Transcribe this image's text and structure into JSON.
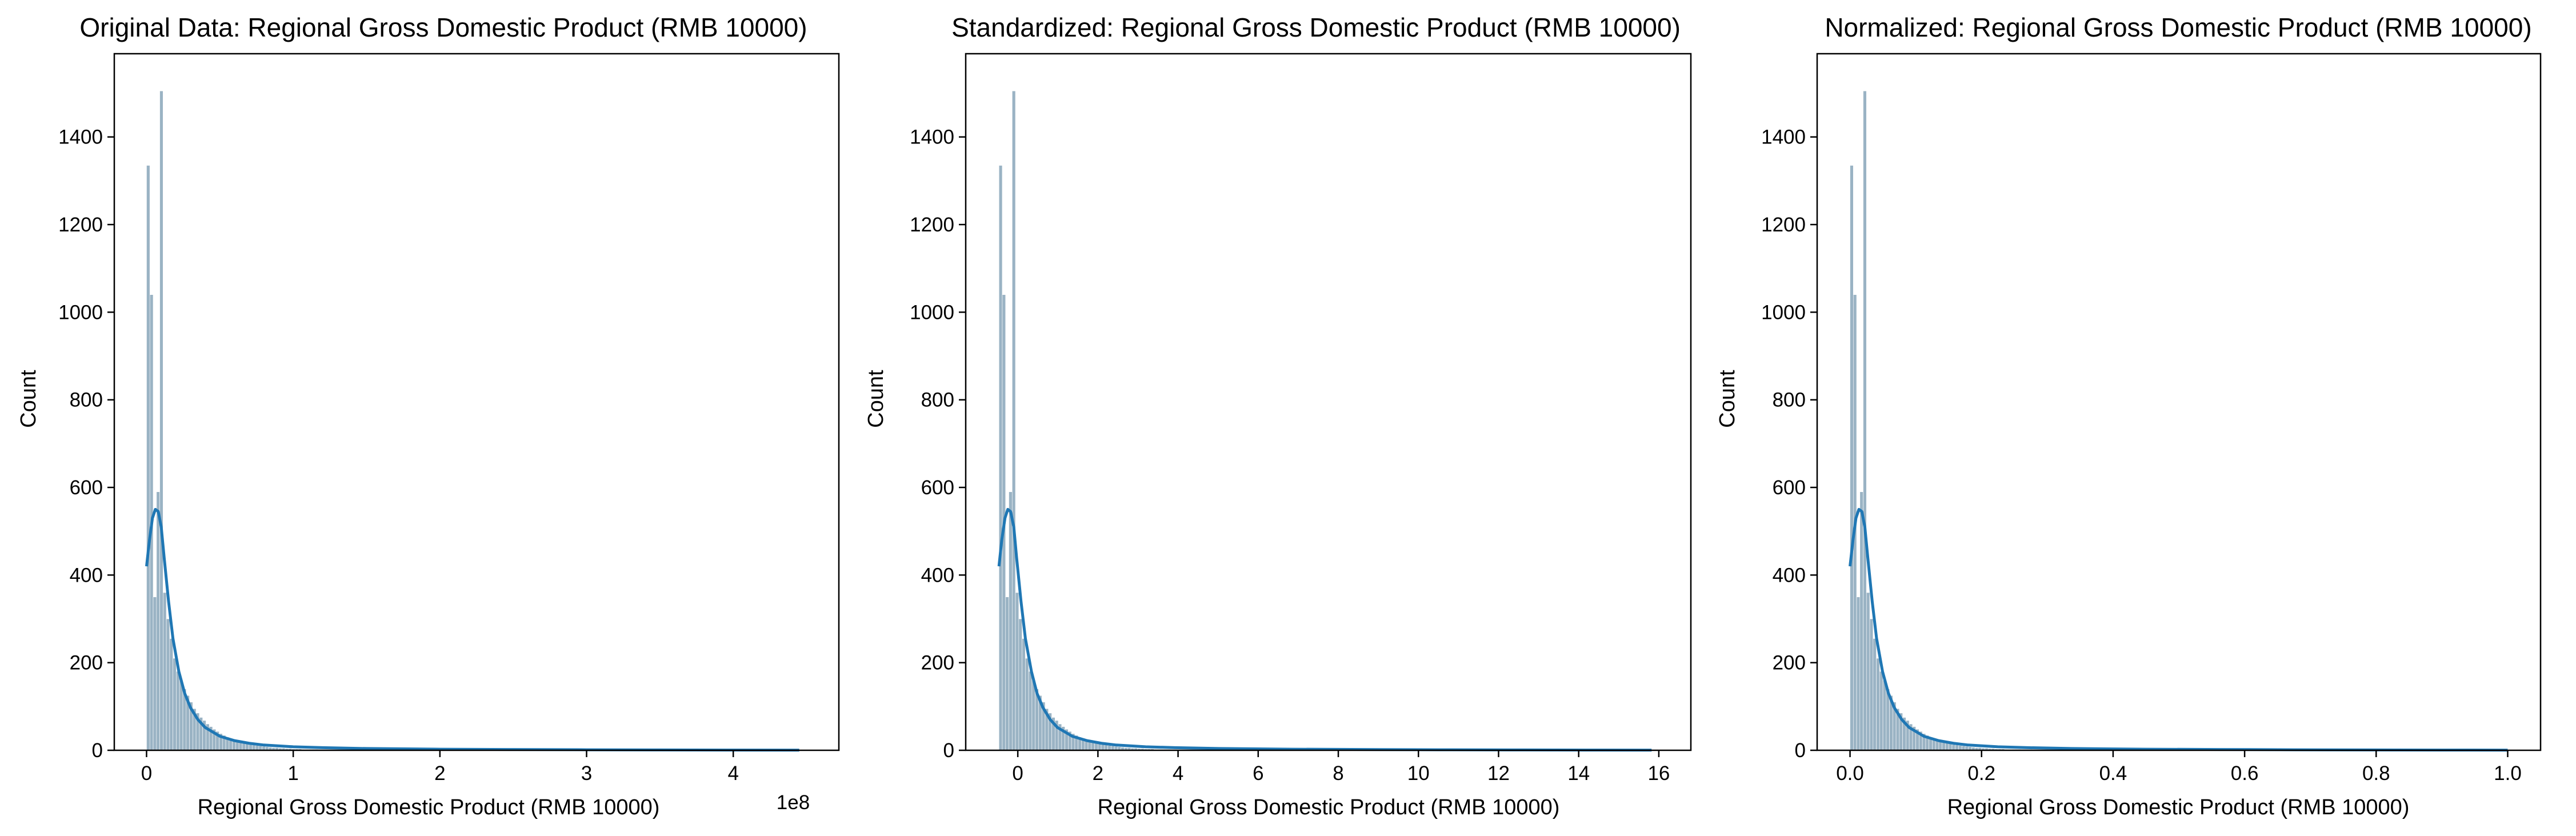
{
  "chart_data": [
    {
      "type": "bar",
      "title": "Original Data: Regional Gross Domestic Product (RMB 10000)",
      "xlabel": "Regional Gross Domestic Product (RMB 10000)",
      "ylabel": "Count",
      "x_offset_label": "1e8",
      "xlim": [
        -0.22,
        4.72
      ],
      "ylim": [
        0,
        1590
      ],
      "xticks": [
        0,
        1,
        2,
        3,
        4
      ],
      "xtick_labels": [
        "0",
        "1",
        "2",
        "3",
        "4"
      ],
      "yticks": [
        0,
        200,
        400,
        600,
        800,
        1000,
        1200,
        1400
      ],
      "ytick_labels": [
        "0",
        "200",
        "400",
        "600",
        "800",
        "1000",
        "1200",
        "1400"
      ],
      "bin_start": 0,
      "bin_width": 0.0225,
      "bin_counts": [
        1335,
        1040,
        350,
        590,
        1505,
        360,
        300,
        255,
        210,
        180,
        160,
        140,
        125,
        110,
        95,
        85,
        75,
        68,
        60,
        54,
        48,
        43,
        38,
        34,
        30,
        27,
        24,
        21,
        19,
        17,
        15,
        13,
        12,
        11,
        10,
        9,
        8,
        7,
        6,
        6,
        5,
        5,
        4,
        4,
        3,
        3,
        3,
        2,
        2,
        2,
        2,
        2,
        1,
        1,
        1
      ],
      "kde": {
        "x": [
          0,
          0.02,
          0.04,
          0.06,
          0.08,
          0.1,
          0.12,
          0.15,
          0.18,
          0.22,
          0.26,
          0.3,
          0.35,
          0.4,
          0.5,
          0.6,
          0.7,
          0.8,
          1.0,
          1.2,
          1.5,
          2.0,
          2.5,
          3.0,
          3.5,
          4.0,
          4.45
        ],
        "y": [
          420,
          480,
          530,
          550,
          545,
          510,
          440,
          340,
          255,
          180,
          130,
          97,
          70,
          52,
          32,
          22,
          16,
          12,
          8,
          6,
          4,
          2.5,
          1.8,
          1.2,
          0.8,
          0.5,
          0.3
        ]
      },
      "bar_color": "#9ab3c4",
      "line_color": "#1f77b4"
    },
    {
      "type": "bar",
      "title": "Standardized: Regional Gross Domestic Product (RMB 10000)",
      "xlabel": "Regional Gross Domestic Product (RMB 10000)",
      "ylabel": "Count",
      "xlim": [
        -1.3,
        16.8
      ],
      "ylim": [
        0,
        1590
      ],
      "xticks": [
        0,
        2,
        4,
        6,
        8,
        10,
        12,
        14,
        16
      ],
      "xtick_labels": [
        "0",
        "2",
        "4",
        "6",
        "8",
        "10",
        "12",
        "14",
        "16"
      ],
      "yticks": [
        0,
        200,
        400,
        600,
        800,
        1000,
        1200,
        1400
      ],
      "ytick_labels": [
        "0",
        "200",
        "400",
        "600",
        "800",
        "1000",
        "1200",
        "1400"
      ],
      "bin_start": -0.47,
      "bin_width": 0.0823,
      "bin_counts": [
        1335,
        1040,
        350,
        590,
        1505,
        360,
        300,
        255,
        210,
        180,
        160,
        140,
        125,
        110,
        95,
        85,
        75,
        68,
        60,
        54,
        48,
        43,
        38,
        34,
        30,
        27,
        24,
        21,
        19,
        17,
        15,
        13,
        12,
        11,
        10,
        9,
        8,
        7,
        6,
        6,
        5,
        5,
        4,
        4,
        3,
        3,
        3,
        2,
        2,
        2,
        2,
        2,
        1,
        1,
        1
      ],
      "kde": {
        "x": [
          -0.47,
          -0.4,
          -0.32,
          -0.25,
          -0.18,
          -0.1,
          -0.03,
          0.08,
          0.19,
          0.34,
          0.48,
          0.63,
          0.81,
          0.99,
          1.36,
          1.73,
          2.09,
          2.46,
          3.19,
          3.92,
          5.02,
          6.85,
          8.68,
          10.51,
          12.34,
          14.17,
          15.82
        ],
        "y": [
          420,
          480,
          530,
          550,
          545,
          510,
          440,
          340,
          255,
          180,
          130,
          97,
          70,
          52,
          32,
          22,
          16,
          12,
          8,
          6,
          4,
          2.5,
          1.8,
          1.2,
          0.8,
          0.5,
          0.3
        ]
      },
      "bar_color": "#9ab3c4",
      "line_color": "#1f77b4"
    },
    {
      "type": "bar",
      "title": "Normalized: Regional Gross Domestic Product (RMB 10000)",
      "xlabel": "Regional Gross Domestic Product (RMB 10000)",
      "ylabel": "Count",
      "xlim": [
        -0.05,
        1.05
      ],
      "ylim": [
        0,
        1590
      ],
      "xticks": [
        0.0,
        0.2,
        0.4,
        0.6,
        0.8,
        1.0
      ],
      "xtick_labels": [
        "0.0",
        "0.2",
        "0.4",
        "0.6",
        "0.8",
        "1.0"
      ],
      "yticks": [
        0,
        200,
        400,
        600,
        800,
        1000,
        1200,
        1400
      ],
      "ytick_labels": [
        "0",
        "200",
        "400",
        "600",
        "800",
        "1000",
        "1200",
        "1400"
      ],
      "bin_start": 0,
      "bin_width": 0.005,
      "bin_counts": [
        1335,
        1040,
        350,
        590,
        1505,
        360,
        300,
        255,
        210,
        180,
        160,
        140,
        125,
        110,
        95,
        85,
        75,
        68,
        60,
        54,
        48,
        43,
        38,
        34,
        30,
        27,
        24,
        21,
        19,
        17,
        15,
        13,
        12,
        11,
        10,
        9,
        8,
        7,
        6,
        6,
        5,
        5,
        4,
        4,
        3,
        3,
        3,
        2,
        2,
        2,
        2,
        2,
        1,
        1,
        1
      ],
      "kde": {
        "x": [
          0,
          0.0045,
          0.009,
          0.0135,
          0.018,
          0.0225,
          0.027,
          0.0337,
          0.0404,
          0.0494,
          0.0584,
          0.0674,
          0.0787,
          0.0899,
          0.1124,
          0.1348,
          0.1573,
          0.1798,
          0.2247,
          0.2697,
          0.3371,
          0.4494,
          0.5618,
          0.6742,
          0.7865,
          0.8989,
          1.0
        ],
        "y": [
          420,
          480,
          530,
          550,
          545,
          510,
          440,
          340,
          255,
          180,
          130,
          97,
          70,
          52,
          32,
          22,
          16,
          12,
          8,
          6,
          4,
          2.5,
          1.8,
          1.2,
          0.8,
          0.5,
          0.3
        ]
      },
      "bar_color": "#9ab3c4",
      "line_color": "#1f77b4"
    }
  ]
}
